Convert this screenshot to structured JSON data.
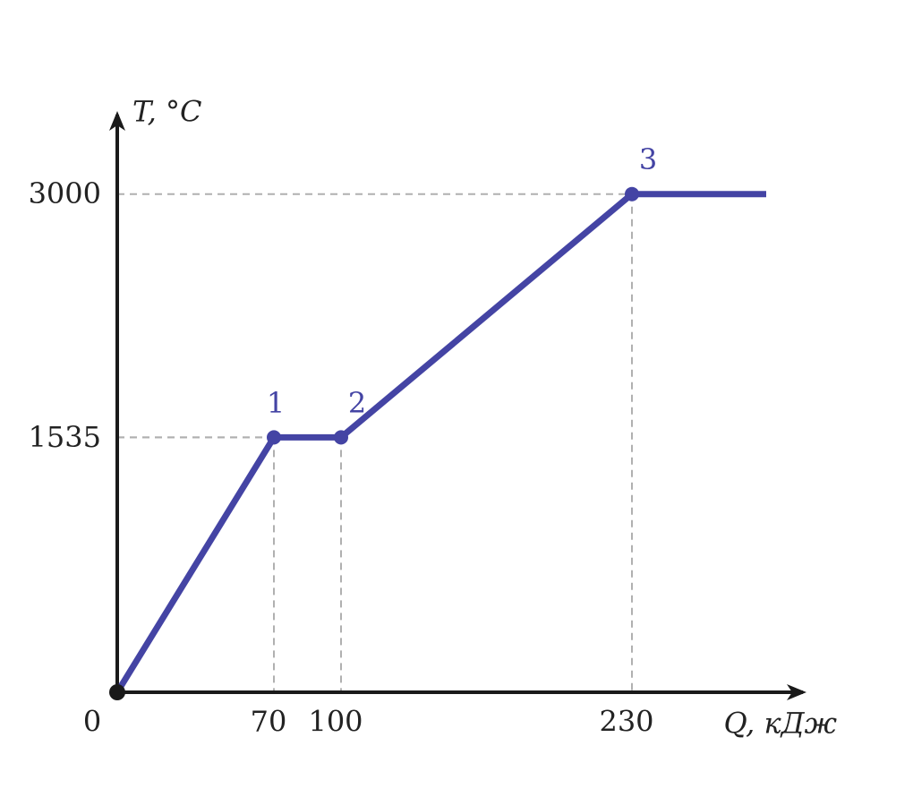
{
  "chart_data": {
    "type": "line",
    "x_label": "Q, кДж",
    "y_label": "T, °C",
    "x": [
      0,
      70,
      100,
      230,
      290
    ],
    "values": [
      0,
      1535,
      1535,
      3000,
      3000
    ],
    "point_labels": [
      null,
      "1",
      "2",
      "3",
      null
    ],
    "color": "#4444a4",
    "xlim": [
      0,
      308
    ],
    "ylim": [
      0,
      3500
    ],
    "xticks": [
      0,
      70,
      100,
      230
    ],
    "yticks": [
      1535,
      3000
    ],
    "grid": false
  }
}
